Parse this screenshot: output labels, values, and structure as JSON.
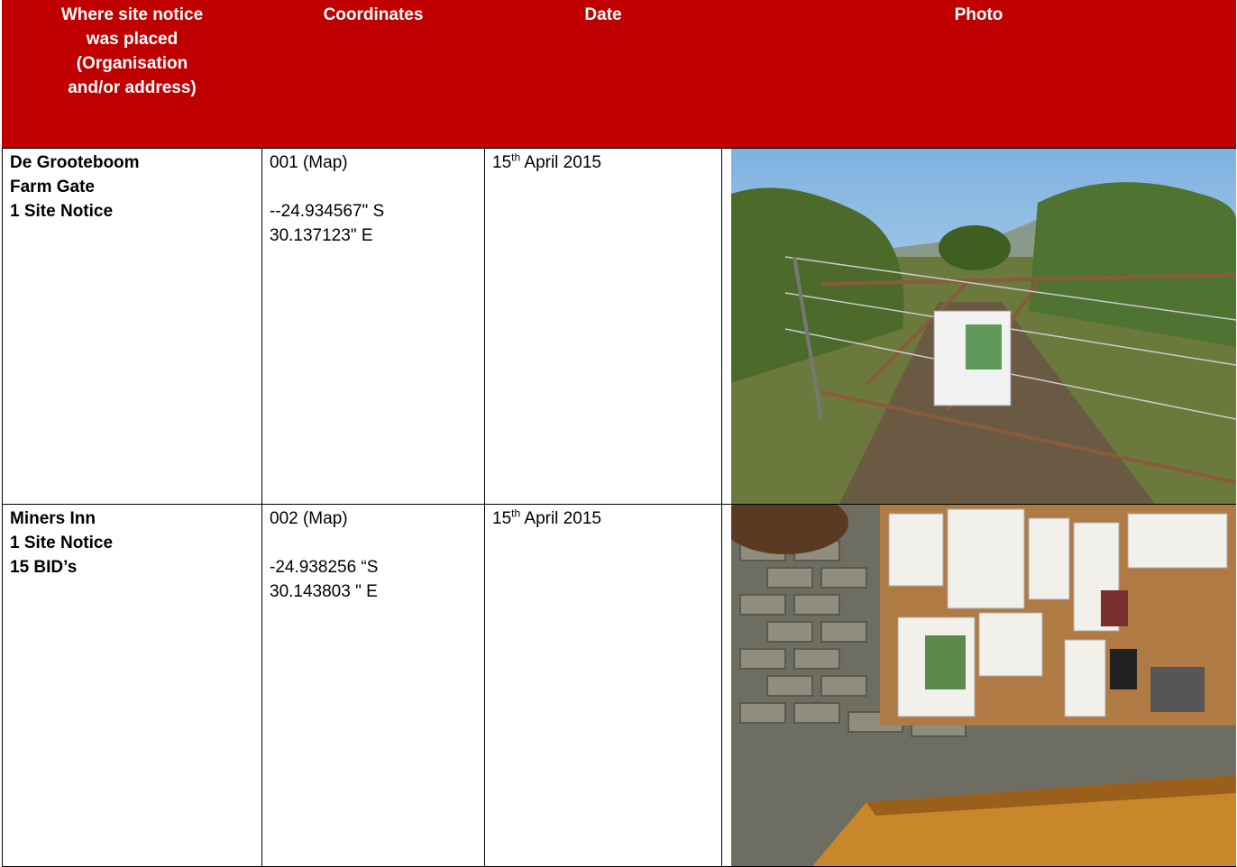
{
  "table": {
    "headers": [
      [
        "Where site notice",
        "was placed",
        "(Organisation",
        "and/or address)"
      ],
      "Coordinates",
      "Date",
      "Photo"
    ],
    "rows": [
      {
        "location": [
          "De Grooteboom",
          "Farm Gate",
          "1 Site Notice"
        ],
        "map": "001 (Map)",
        "coordinates": [
          "--24.934567\" S",
          "30.137123\" E"
        ],
        "date": {
          "day": "15",
          "suffix": "th",
          "rest": "April 2015"
        }
      },
      {
        "location": [
          "Miners Inn",
          "1 Site Notice",
          "15 BID’s"
        ],
        "map": "002 (Map)",
        "coordinates": [
          "-24.938256 “S",
          "30.143803 \" E"
        ],
        "date": {
          "day": "15",
          "suffix": "th",
          "rest": "April 2015"
        }
      }
    ]
  }
}
